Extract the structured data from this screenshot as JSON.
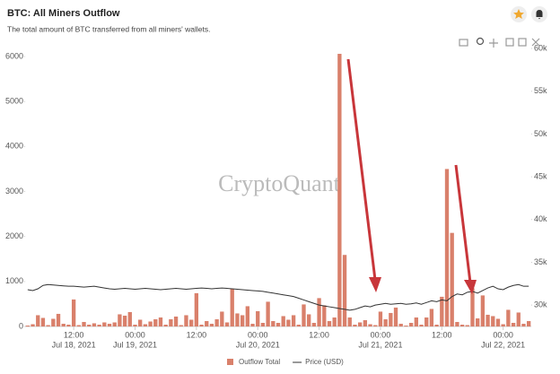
{
  "chart_data": {
    "type": "bar",
    "title": "BTC: All Miners Outflow",
    "subtitle": "The total amount of BTC transferred from all miners' wallets.",
    "watermark": "CryptoQuant",
    "categories": [
      null,
      null,
      null,
      null,
      null,
      null,
      null,
      null,
      null,
      "12:00",
      null,
      null,
      null,
      null,
      null,
      null,
      null,
      null,
      null,
      null,
      null,
      "00:00",
      null,
      null,
      null,
      null,
      null,
      null,
      null,
      null,
      null,
      null,
      null,
      "12:00",
      null,
      null,
      null,
      null,
      null,
      null,
      null,
      null,
      null,
      null,
      null,
      "00:00",
      null,
      null,
      null,
      null,
      null,
      null,
      null,
      null,
      null,
      null,
      null,
      "12:00",
      null,
      null,
      null,
      null,
      null,
      null,
      null,
      null,
      null,
      null,
      null,
      "00:00",
      null,
      null,
      null,
      null,
      null,
      null,
      null,
      null,
      null,
      null,
      null,
      "12:00",
      null,
      null,
      null,
      null,
      null,
      null,
      null,
      null,
      null,
      null,
      null,
      "00:00",
      null,
      null,
      null,
      null,
      null
    ],
    "x_sublabels": [
      null,
      null,
      null,
      null,
      null,
      null,
      null,
      null,
      null,
      "Jul 18, 2021",
      null,
      null,
      null,
      null,
      null,
      null,
      null,
      null,
      null,
      null,
      null,
      "Jul 19, 2021",
      null,
      null,
      null,
      null,
      null,
      null,
      null,
      null,
      null,
      null,
      null,
      null,
      null,
      null,
      null,
      null,
      null,
      null,
      null,
      null,
      null,
      null,
      null,
      "Jul 20, 2021",
      null,
      null,
      null,
      null,
      null,
      null,
      null,
      null,
      null,
      null,
      null,
      null,
      null,
      null,
      null,
      null,
      null,
      null,
      null,
      null,
      null,
      null,
      null,
      "Jul 21, 2021",
      null,
      null,
      null,
      null,
      null,
      null,
      null,
      null,
      null,
      null,
      null,
      null,
      null,
      null,
      null,
      null,
      null,
      null,
      null,
      null,
      null,
      null,
      null,
      "Jul 22, 2021",
      null,
      null,
      null,
      null,
      null
    ],
    "series": [
      {
        "name": "Outflow Total",
        "color": "#d9806b",
        "values": [
          20,
          50,
          250,
          190,
          30,
          170,
          280,
          60,
          40,
          600,
          30,
          100,
          40,
          70,
          40,
          90,
          60,
          90,
          270,
          240,
          320,
          40,
          150,
          50,
          110,
          160,
          200,
          40,
          160,
          220,
          30,
          250,
          150,
          740,
          40,
          120,
          60,
          160,
          330,
          90,
          840,
          290,
          250,
          450,
          60,
          340,
          80,
          550,
          120,
          80,
          230,
          150,
          250,
          40,
          490,
          270,
          80,
          630,
          470,
          120,
          200,
          6060,
          1590,
          200,
          40,
          90,
          140,
          50,
          30,
          330,
          160,
          300,
          420,
          60,
          20,
          80,
          200,
          40,
          200,
          390,
          40,
          660,
          3500,
          2080,
          100,
          40,
          30,
          850,
          180,
          690,
          260,
          230,
          170,
          50,
          370,
          80,
          310,
          60,
          120
        ]
      },
      {
        "name": "Price (USD)",
        "color": "#333333",
        "axis": "y2",
        "type": "line",
        "values": [
          31800,
          31700,
          31900,
          32300,
          32400,
          32350,
          32300,
          32250,
          32200,
          32200,
          32150,
          32100,
          32150,
          32200,
          32100,
          32000,
          31900,
          31850,
          31900,
          31950,
          31900,
          31850,
          31900,
          31950,
          31900,
          31850,
          31800,
          31850,
          31900,
          31950,
          31900,
          31850,
          31900,
          31950,
          32000,
          31950,
          31900,
          31950,
          32000,
          31950,
          31900,
          31850,
          31800,
          31750,
          31700,
          31650,
          31600,
          31500,
          31400,
          31300,
          31200,
          31100,
          31000,
          30800,
          30600,
          30400,
          30200,
          30000,
          29900,
          29800,
          29700,
          29600,
          29500,
          29400,
          29500,
          29700,
          29900,
          29800,
          30000,
          30100,
          30200,
          30100,
          30150,
          30200,
          30100,
          30150,
          30250,
          30100,
          30300,
          30500,
          30400,
          30600,
          30500,
          31000,
          31300,
          31200,
          31500,
          31600,
          31400,
          31700,
          32000,
          32200,
          31900,
          31800,
          32100,
          32300,
          32400,
          32200,
          32200
        ]
      }
    ],
    "ylim": [
      0,
      6180
    ],
    "yticks": [
      0,
      1000,
      2000,
      3000,
      4000,
      5000,
      6000
    ],
    "y2lim": [
      27500,
      60000
    ],
    "y2ticks": [
      {
        "value": 30000,
        "label": "30k"
      },
      {
        "value": 35000,
        "label": "35k"
      },
      {
        "value": 40000,
        "label": "40k"
      },
      {
        "value": 45000,
        "label": "45k"
      },
      {
        "value": 50000,
        "label": "50k"
      },
      {
        "value": 55000,
        "label": "55k"
      },
      {
        "value": 60000,
        "label": "60k"
      }
    ],
    "grid": false
  }
}
